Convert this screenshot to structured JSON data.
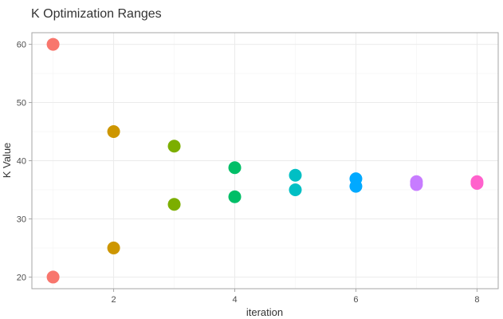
{
  "chart_data": {
    "type": "scatter",
    "title": "K Optimization Ranges",
    "xlabel": "iteration",
    "ylabel": "K Value",
    "xlim": [
      0.65,
      8.35
    ],
    "ylim": [
      18.0,
      62.0
    ],
    "x_ticks": [
      2,
      4,
      6,
      8
    ],
    "y_ticks": [
      20,
      30,
      40,
      50,
      60
    ],
    "grid": true,
    "legend": "none",
    "points": [
      {
        "x": 1,
        "y": 60.0,
        "color": "#F8766D"
      },
      {
        "x": 1,
        "y": 20.0,
        "color": "#F8766D"
      },
      {
        "x": 2,
        "y": 45.0,
        "color": "#CD9600"
      },
      {
        "x": 2,
        "y": 25.0,
        "color": "#CD9600"
      },
      {
        "x": 3,
        "y": 42.5,
        "color": "#7CAE00"
      },
      {
        "x": 3,
        "y": 32.5,
        "color": "#7CAE00"
      },
      {
        "x": 4,
        "y": 38.8,
        "color": "#00BE67"
      },
      {
        "x": 4,
        "y": 33.8,
        "color": "#00BE67"
      },
      {
        "x": 5,
        "y": 37.5,
        "color": "#00BFC4"
      },
      {
        "x": 5,
        "y": 35.0,
        "color": "#00BFC4"
      },
      {
        "x": 6,
        "y": 36.9,
        "color": "#00A9FF"
      },
      {
        "x": 6,
        "y": 35.6,
        "color": "#00A9FF"
      },
      {
        "x": 7,
        "y": 36.4,
        "color": "#C77CFF"
      },
      {
        "x": 7,
        "y": 35.9,
        "color": "#C77CFF"
      },
      {
        "x": 8,
        "y": 36.4,
        "color": "#FF61CC"
      },
      {
        "x": 8,
        "y": 36.1,
        "color": "#FF61CC"
      }
    ]
  }
}
